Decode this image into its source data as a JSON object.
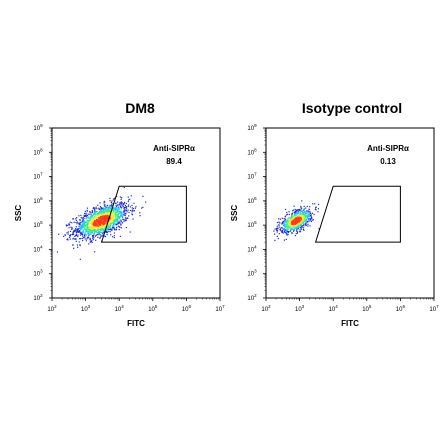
{
  "chart_data": [
    {
      "type": "scatter",
      "subtype": "flow-cytometry-density-plot",
      "title": "DM8",
      "xlabel": "FITC",
      "ylabel": "SSC",
      "xscale": "log",
      "yscale": "log",
      "xlim": [
        100,
        10000000
      ],
      "ylim": [
        100,
        1000000000
      ],
      "xticks": [
        "10^2",
        "10^3",
        "10^4",
        "10^5",
        "10^6",
        "10^7"
      ],
      "yticks": [
        "10^2",
        "10^3",
        "10^4",
        "10^5",
        "10^6",
        "10^7",
        "10^8",
        "10^9"
      ],
      "gate": {
        "name": "Anti-SIPRα",
        "percent": "89.4",
        "polygon": [
          [
            3000,
            20000
          ],
          [
            10000,
            4000000
          ],
          [
            1000000,
            4000000
          ],
          [
            1000000,
            20000
          ]
        ]
      },
      "population": {
        "center": [
          3000,
          150000
        ],
        "spread_decades": [
          0.9,
          0.8
        ]
      },
      "grid": false
    },
    {
      "type": "scatter",
      "subtype": "flow-cytometry-density-plot",
      "title": "Isotype control",
      "xlabel": "FITC",
      "ylabel": "SSC",
      "xscale": "log",
      "yscale": "log",
      "xlim": [
        100,
        10000000
      ],
      "ylim": [
        100,
        1000000000
      ],
      "xticks": [
        "10^2",
        "10^3",
        "10^4",
        "10^5",
        "10^6",
        "10^7"
      ],
      "yticks": [
        "10^2",
        "10^3",
        "10^4",
        "10^5",
        "10^6",
        "10^7",
        "10^8",
        "10^9"
      ],
      "gate": {
        "name": "Anti-SIPRα",
        "percent": "0.13",
        "polygon": [
          [
            3000,
            20000
          ],
          [
            10000,
            4000000
          ],
          [
            1000000,
            4000000
          ],
          [
            1000000,
            20000
          ]
        ]
      },
      "population": {
        "center": [
          800,
          150000
        ],
        "spread_decades": [
          0.55,
          0.55
        ]
      },
      "grid": false
    }
  ],
  "colors": {
    "density_low": "#1e2bd8",
    "density_mid": "#21c8f0",
    "density_midhigh": "#30f07a",
    "density_high": "#f2e83a",
    "density_peak": "#ff3a1a",
    "gate_stroke": "#000000"
  }
}
